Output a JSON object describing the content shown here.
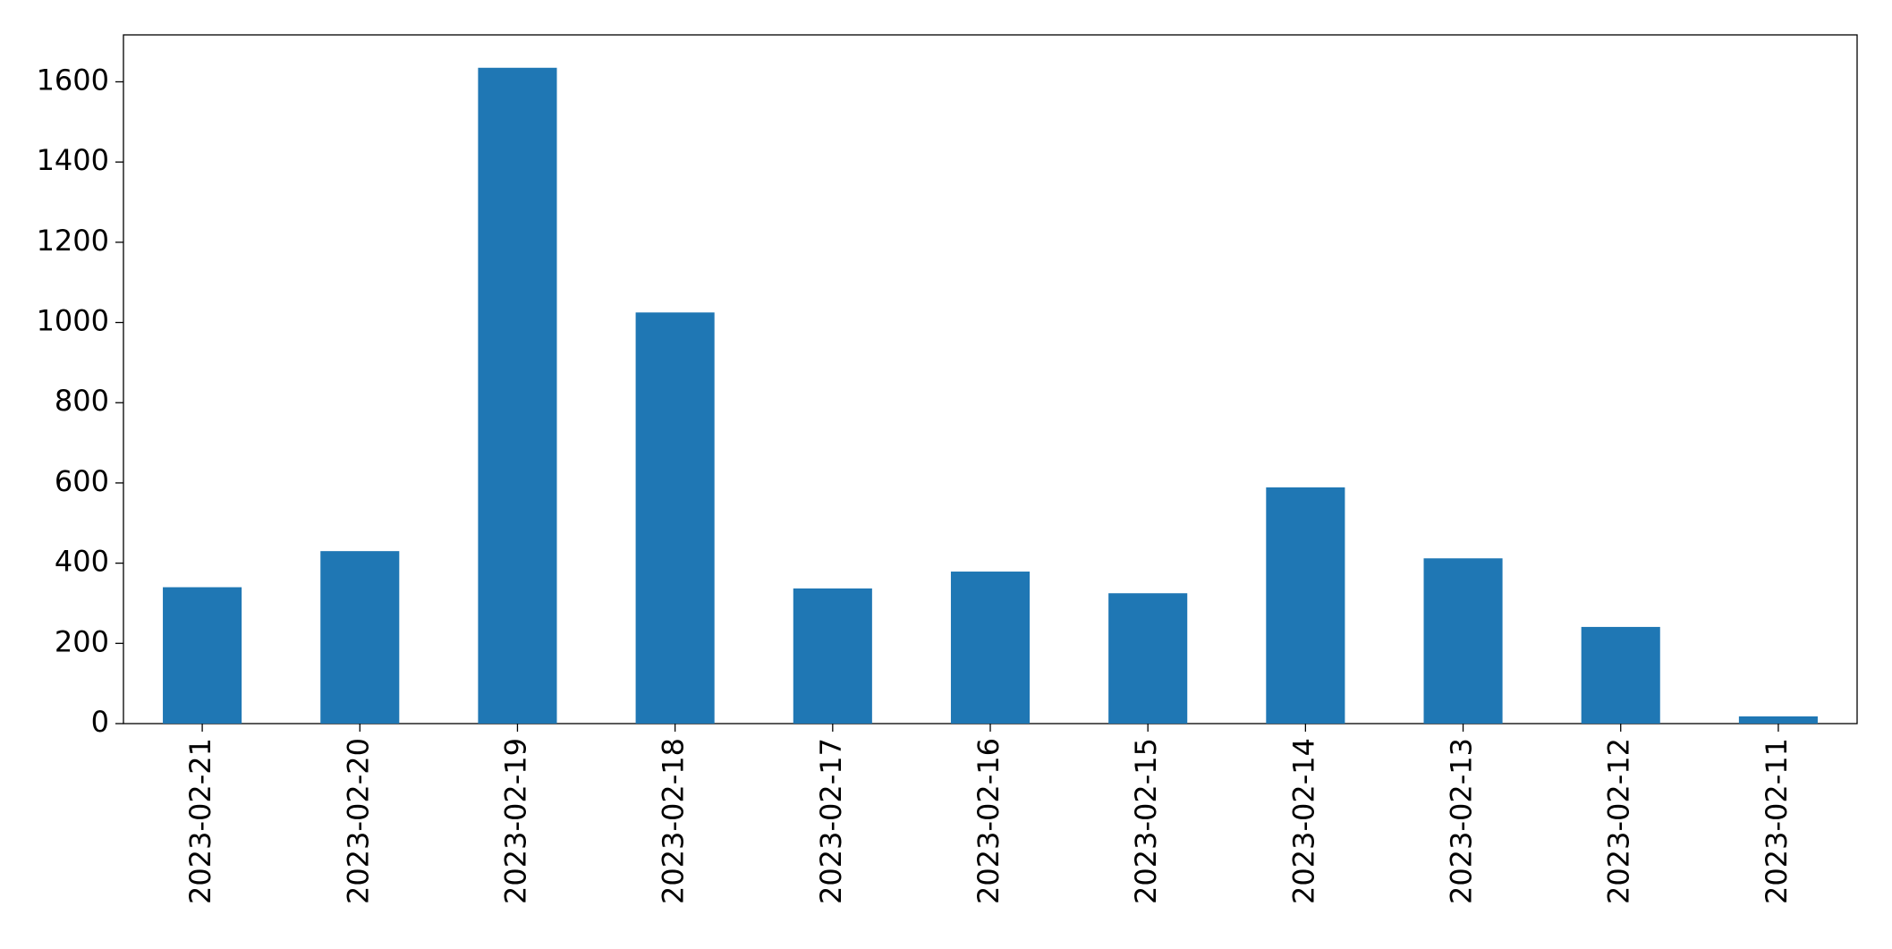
{
  "chart_data": {
    "type": "bar",
    "categories": [
      "2023-02-21",
      "2023-02-20",
      "2023-02-19",
      "2023-02-18",
      "2023-02-17",
      "2023-02-16",
      "2023-02-15",
      "2023-02-14",
      "2023-02-13",
      "2023-02-12",
      "2023-02-11"
    ],
    "values": [
      340,
      430,
      1635,
      1025,
      337,
      379,
      325,
      589,
      412,
      241,
      18
    ],
    "color": "#1f77b4",
    "ylim": [
      0,
      1717
    ],
    "yticks": [
      0,
      200,
      400,
      600,
      800,
      1000,
      1200,
      1400,
      1600
    ],
    "grid": false
  }
}
